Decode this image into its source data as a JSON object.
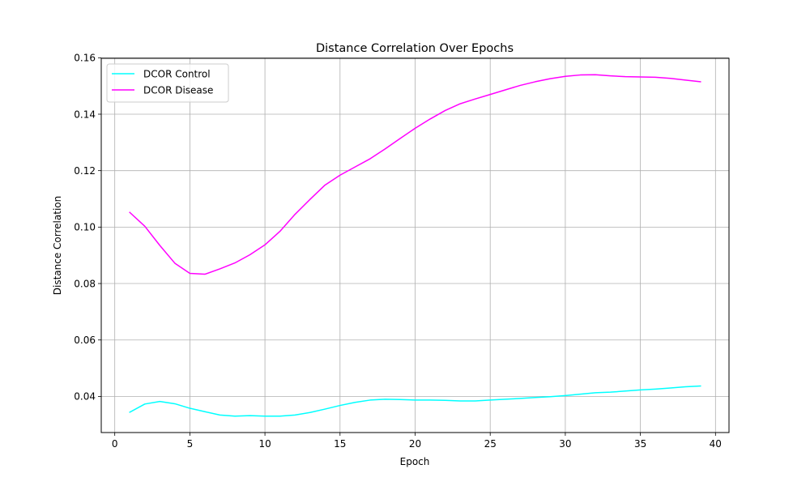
{
  "chart_data": {
    "type": "line",
    "title": "Distance Correlation Over Epochs",
    "xlabel": "Epoch",
    "ylabel": "Distance Correlation",
    "xlim": [
      -0.9,
      40.9
    ],
    "ylim": [
      0.0272,
      0.1598
    ],
    "xticks": [
      0,
      5,
      10,
      15,
      20,
      25,
      30,
      35,
      40
    ],
    "xtick_labels": [
      "0",
      "5",
      "10",
      "15",
      "20",
      "25",
      "30",
      "35",
      "40"
    ],
    "yticks": [
      0.04,
      0.06,
      0.08,
      0.1,
      0.12,
      0.14,
      0.16
    ],
    "ytick_labels": [
      "0.04",
      "0.06",
      "0.08",
      "0.10",
      "0.12",
      "0.14",
      "0.16"
    ],
    "grid": true,
    "legend": "top-left",
    "x": [
      1,
      2,
      3,
      4,
      5,
      6,
      7,
      8,
      9,
      10,
      11,
      12,
      13,
      14,
      15,
      16,
      17,
      18,
      19,
      20,
      21,
      22,
      23,
      24,
      25,
      26,
      27,
      28,
      29,
      30,
      31,
      32,
      33,
      34,
      35,
      36,
      37,
      38,
      39
    ],
    "series": [
      {
        "name": "DCOR Control",
        "color": "#00ffff",
        "values": [
          0.0344,
          0.0373,
          0.0382,
          0.0374,
          0.0358,
          0.0346,
          0.0334,
          0.033,
          0.0332,
          0.033,
          0.033,
          0.0334,
          0.0343,
          0.0355,
          0.0368,
          0.0379,
          0.0387,
          0.039,
          0.0389,
          0.0387,
          0.0387,
          0.0386,
          0.0384,
          0.0384,
          0.0387,
          0.039,
          0.0393,
          0.0396,
          0.0399,
          0.0403,
          0.0408,
          0.0413,
          0.0415,
          0.0419,
          0.0423,
          0.0426,
          0.043,
          0.0434,
          0.0437
        ]
      },
      {
        "name": "DCOR Disease",
        "color": "#ff00ff",
        "values": [
          0.1052,
          0.1003,
          0.0935,
          0.0872,
          0.0836,
          0.0833,
          0.0852,
          0.0873,
          0.0902,
          0.0937,
          0.0985,
          0.1045,
          0.1098,
          0.1149,
          0.1184,
          0.1213,
          0.1242,
          0.1277,
          0.1314,
          0.135,
          0.1383,
          0.1413,
          0.1437,
          0.1454,
          0.147,
          0.1486,
          0.1502,
          0.1515,
          0.1526,
          0.1534,
          0.1539,
          0.154,
          0.1536,
          0.1533,
          0.1532,
          0.1531,
          0.1527,
          0.1521,
          0.1515
        ]
      }
    ]
  }
}
